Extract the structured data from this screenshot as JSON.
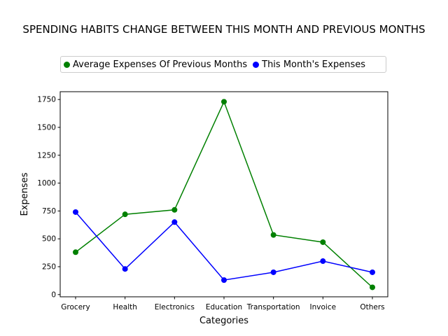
{
  "chart_data": {
    "type": "line",
    "title": "SPENDING HABITS CHANGE BETWEEN THIS MONTH AND PREVIOUS MONTHS",
    "xlabel": "Categories",
    "ylabel": "Expenses",
    "categories": [
      "Grocery",
      "Health",
      "Electronics",
      "Education",
      "Transportation",
      "Invoice",
      "Others"
    ],
    "ylim": [
      -20,
      1820
    ],
    "yticks": [
      0,
      250,
      500,
      750,
      1000,
      1250,
      1500,
      1750
    ],
    "legend_position": "top-center",
    "grid": false,
    "series": [
      {
        "name": "Average Expenses Of Previous Months",
        "color": "#008000",
        "values": [
          380,
          720,
          760,
          1730,
          535,
          470,
          65
        ]
      },
      {
        "name": "This Month's Expenses",
        "color": "#0000ff",
        "values": [
          740,
          230,
          650,
          130,
          200,
          300,
          200
        ]
      }
    ]
  }
}
